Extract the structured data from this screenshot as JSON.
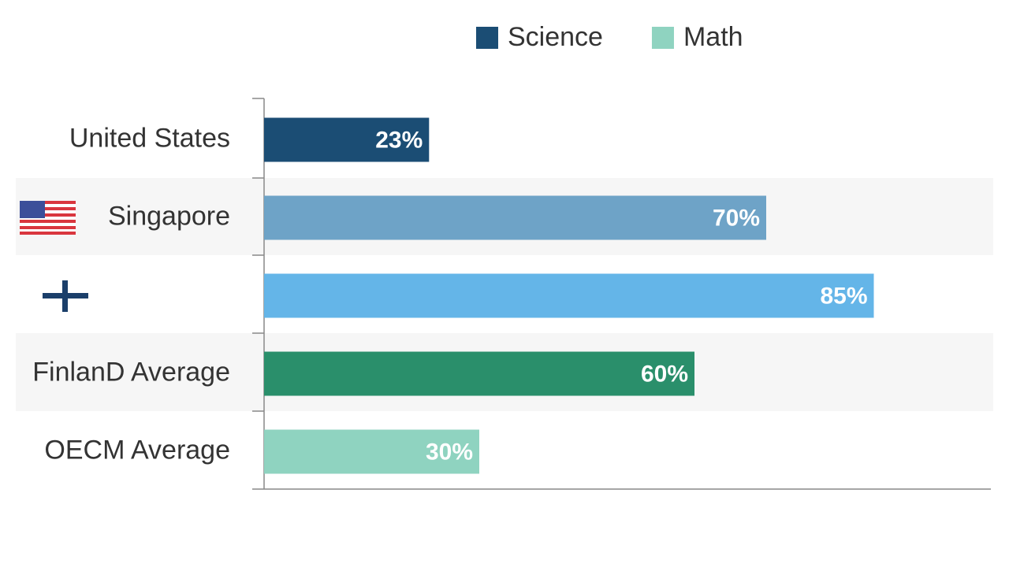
{
  "chart_data": {
    "type": "bar",
    "orientation": "horizontal",
    "legend": [
      {
        "name": "Science",
        "color": "#1b4d74"
      },
      {
        "name": "Math",
        "color": "#8fd3c0"
      }
    ],
    "categories": [
      "United States",
      "Singapore",
      null,
      "FinlanD Average",
      "OECM Average"
    ],
    "values": [
      23,
      70,
      85,
      60,
      30
    ],
    "value_labels": [
      "23%",
      "70%",
      "85%",
      "60%",
      "30%"
    ],
    "colors": [
      "#1b4d74",
      "#6ea3c7",
      "#64b5e8",
      "#2a8f6b",
      "#8fd3c0"
    ],
    "xlim": [
      0,
      100
    ]
  }
}
